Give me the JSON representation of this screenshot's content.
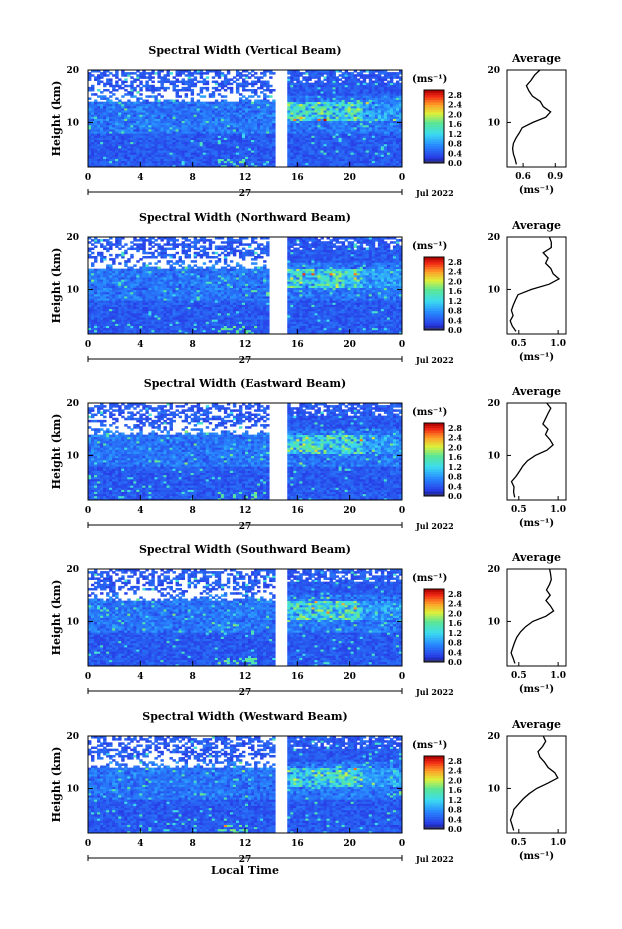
{
  "chart_data": [
    {
      "type": "heatmap",
      "title": "Spectral Width (Vertical Beam)",
      "ylabel": "Height (km)",
      "yticks": [
        "20",
        "10"
      ],
      "xticks": [
        "0",
        "4",
        "8",
        "12",
        "16",
        "20",
        "0"
      ],
      "xlim": [
        0,
        24
      ],
      "ylim": [
        1.5,
        20
      ],
      "day_label": "27",
      "date_label": "Jul 2022",
      "colorbar": {
        "unit": "(ms⁻¹)",
        "ticks": [
          "2.8",
          "2.4",
          "2.0",
          "1.6",
          "1.2",
          "0.8",
          "0.4",
          "0.0"
        ],
        "range": [
          0,
          3.0
        ]
      },
      "data_gap_hours": [
        14.2,
        15.3
      ],
      "average_profile": {
        "title": "Average",
        "xlabel": "(ms⁻¹)",
        "xticks": [
          "0.6",
          "0.9"
        ],
        "xlim": [
          0.45,
          1.0
        ],
        "yticks": [
          "20",
          "10"
        ],
        "heights": [
          2,
          3,
          4,
          5,
          6,
          7,
          8,
          9,
          10,
          11,
          12,
          13,
          14,
          15,
          16,
          17,
          18,
          19,
          20
        ],
        "values": [
          0.55,
          0.52,
          0.52,
          0.5,
          0.5,
          0.52,
          0.55,
          0.6,
          0.68,
          0.8,
          0.85,
          0.8,
          0.76,
          0.7,
          0.66,
          0.62,
          0.68,
          0.72,
          0.75
        ]
      }
    },
    {
      "type": "heatmap",
      "title": "Spectral Width (Northward Beam)",
      "ylabel": "Height (km)",
      "yticks": [
        "20",
        "10"
      ],
      "xticks": [
        "0",
        "4",
        "8",
        "12",
        "16",
        "20",
        "0"
      ],
      "xlim": [
        0,
        24
      ],
      "ylim": [
        1.5,
        20
      ],
      "day_label": "27",
      "date_label": "Jul 2022",
      "colorbar": {
        "unit": "(ms⁻¹)",
        "ticks": [
          "2.8",
          "2.4",
          "2.0",
          "1.6",
          "1.2",
          "0.8",
          "0.4",
          "0.0"
        ],
        "range": [
          0,
          3.0
        ]
      },
      "data_gap_hours": [
        13.8,
        15.2
      ],
      "average_profile": {
        "title": "Average",
        "xlabel": "(ms⁻¹)",
        "xticks": [
          "0.5",
          "1.0"
        ],
        "xlim": [
          0.35,
          1.1
        ],
        "yticks": [
          "20",
          "10"
        ],
        "heights": [
          2,
          3,
          4,
          5,
          6,
          7,
          8,
          9,
          10,
          11,
          12,
          13,
          14,
          15,
          16,
          17,
          18,
          19,
          20
        ],
        "values": [
          0.45,
          0.42,
          0.4,
          0.42,
          0.4,
          0.42,
          0.45,
          0.5,
          0.65,
          0.9,
          1.0,
          0.95,
          0.9,
          0.85,
          0.88,
          0.82,
          0.9,
          0.92,
          0.9
        ]
      }
    },
    {
      "type": "heatmap",
      "title": "Spectral Width (Eastward Beam)",
      "ylabel": "Height (km)",
      "yticks": [
        "20",
        "10"
      ],
      "xticks": [
        "0",
        "4",
        "8",
        "12",
        "16",
        "20",
        "0"
      ],
      "xlim": [
        0,
        24
      ],
      "ylim": [
        1.5,
        20
      ],
      "day_label": "27",
      "date_label": "Jul 2022",
      "colorbar": {
        "unit": "(ms⁻¹)",
        "ticks": [
          "2.8",
          "2.4",
          "2.0",
          "1.6",
          "1.2",
          "0.8",
          "0.4",
          "0.0"
        ],
        "range": [
          0,
          3.0
        ]
      },
      "data_gap_hours": [
        13.8,
        15.3
      ],
      "average_profile": {
        "title": "Average",
        "xlabel": "(ms⁻¹)",
        "xticks": [
          "0.5",
          "1.0"
        ],
        "xlim": [
          0.35,
          1.1
        ],
        "yticks": [
          "20",
          "10"
        ],
        "heights": [
          2,
          3,
          4,
          5,
          6,
          7,
          8,
          9,
          10,
          11,
          12,
          13,
          14,
          15,
          16,
          17,
          18,
          19,
          20
        ],
        "values": [
          0.45,
          0.42,
          0.45,
          0.42,
          0.45,
          0.5,
          0.55,
          0.6,
          0.7,
          0.85,
          0.95,
          0.9,
          0.85,
          0.88,
          0.8,
          0.85,
          0.88,
          0.9,
          0.85
        ]
      }
    },
    {
      "type": "heatmap",
      "title": "Spectral Width (Southward Beam)",
      "ylabel": "Height (km)",
      "yticks": [
        "20",
        "10"
      ],
      "xticks": [
        "0",
        "4",
        "8",
        "12",
        "16",
        "20",
        "0"
      ],
      "xlim": [
        0,
        24
      ],
      "ylim": [
        1.5,
        20
      ],
      "day_label": "27",
      "date_label": "Jul 2022",
      "colorbar": {
        "unit": "(ms⁻¹)",
        "ticks": [
          "2.8",
          "2.4",
          "2.0",
          "1.6",
          "1.2",
          "0.8",
          "0.4",
          "0.0"
        ],
        "range": [
          0,
          3.0
        ]
      },
      "data_gap_hours": [
        14.2,
        15.3
      ],
      "average_profile": {
        "title": "Average",
        "xlabel": "(ms⁻¹)",
        "xticks": [
          "0.5",
          "1.0"
        ],
        "xlim": [
          0.35,
          1.1
        ],
        "yticks": [
          "20",
          "10"
        ],
        "heights": [
          2,
          3,
          4,
          5,
          6,
          7,
          8,
          9,
          10,
          11,
          12,
          13,
          14,
          15,
          16,
          17,
          18,
          19,
          20
        ],
        "values": [
          0.45,
          0.42,
          0.4,
          0.42,
          0.45,
          0.48,
          0.52,
          0.58,
          0.68,
          0.85,
          0.95,
          0.9,
          0.85,
          0.9,
          0.85,
          0.88,
          0.92,
          0.9,
          0.88
        ]
      }
    },
    {
      "type": "heatmap",
      "title": "Spectral Width (Westward Beam)",
      "ylabel": "Height (km)",
      "yticks": [
        "20",
        "10"
      ],
      "xticks": [
        "0",
        "4",
        "8",
        "12",
        "16",
        "20",
        "0"
      ],
      "xlim": [
        0,
        24
      ],
      "ylim": [
        1.5,
        20
      ],
      "day_label": "27",
      "date_label": "Jul 2022",
      "xlabel": "Local Time",
      "colorbar": {
        "unit": "(ms⁻¹)",
        "ticks": [
          "2.8",
          "2.4",
          "2.0",
          "1.6",
          "1.2",
          "0.8",
          "0.4",
          "0.0"
        ],
        "range": [
          0,
          3.0
        ]
      },
      "data_gap_hours": [
        14.2,
        15.3
      ],
      "average_profile": {
        "title": "Average",
        "xlabel": "(ms⁻¹)",
        "xticks": [
          "0.5",
          "1.0"
        ],
        "xlim": [
          0.35,
          1.1
        ],
        "yticks": [
          "20",
          "10"
        ],
        "heights": [
          2,
          3,
          4,
          5,
          6,
          7,
          8,
          9,
          10,
          11,
          12,
          13,
          14,
          15,
          16,
          17,
          18,
          19,
          20
        ],
        "values": [
          0.45,
          0.42,
          0.4,
          0.42,
          0.45,
          0.5,
          0.55,
          0.62,
          0.72,
          0.88,
          1.0,
          0.95,
          0.88,
          0.82,
          0.78,
          0.75,
          0.8,
          0.85,
          0.82
        ]
      }
    }
  ]
}
